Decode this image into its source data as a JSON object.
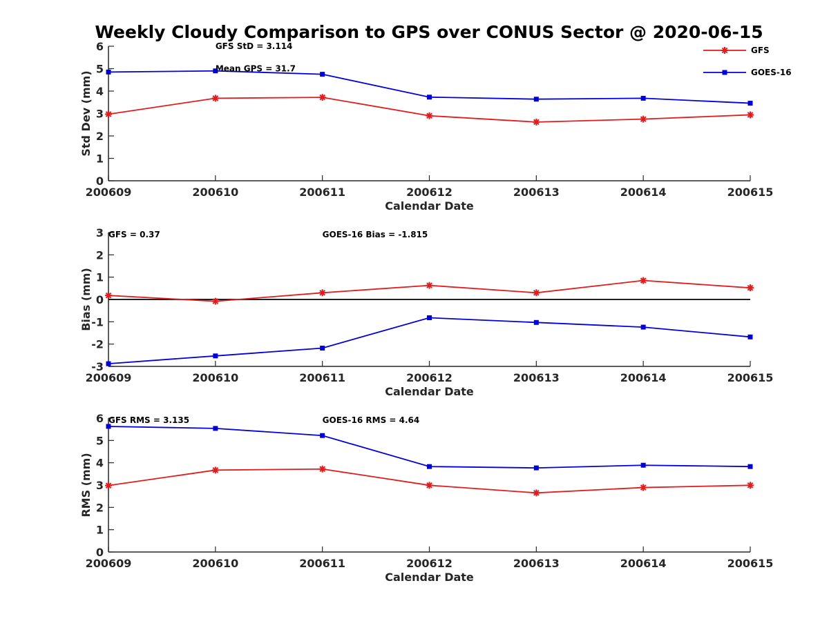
{
  "title": "Weekly Cloudy Comparison to GPS over CONUS Sector @ 2020-06-15",
  "legend": {
    "placement": "top-right",
    "entries": [
      {
        "name": "GFS",
        "color": "#e41a1c",
        "marker": "asterisk"
      },
      {
        "name": "GOES-16",
        "color": "#0000dd",
        "marker": "square"
      }
    ]
  },
  "chart_data": [
    {
      "type": "line",
      "xlabel": "Calendar Date",
      "ylabel": "Std Dev (mm)",
      "categories": [
        "200609",
        "200610",
        "200611",
        "200612",
        "200613",
        "200614",
        "200615"
      ],
      "ylim": [
        0,
        6
      ],
      "yticks": [
        "0",
        "1",
        "2",
        "3",
        "4",
        "5",
        "6"
      ],
      "series": [
        {
          "name": "GFS",
          "values": [
            2.97,
            3.68,
            3.72,
            2.9,
            2.62,
            2.75,
            2.94
          ]
        },
        {
          "name": "GOES-16",
          "values": [
            4.85,
            4.9,
            4.75,
            3.73,
            3.64,
            3.68,
            3.46
          ]
        }
      ],
      "annotations": [
        {
          "text": "GFS StD = 3.114",
          "x": "200610",
          "y": 6.0
        },
        {
          "text": "Mean GPS = 31.7",
          "x": "200610",
          "y": 5.0
        }
      ],
      "zero_line": false
    },
    {
      "type": "line",
      "xlabel": "Calendar Date",
      "ylabel": "Bias (mm)",
      "categories": [
        "200609",
        "200610",
        "200611",
        "200612",
        "200613",
        "200614",
        "200615"
      ],
      "ylim": [
        -3,
        3
      ],
      "yticks": [
        "-3",
        "-2",
        "-1",
        "0",
        "1",
        "2",
        "3"
      ],
      "series": [
        {
          "name": "GFS",
          "values": [
            0.18,
            -0.08,
            0.3,
            0.63,
            0.3,
            0.85,
            0.52
          ]
        },
        {
          "name": "GOES-16",
          "values": [
            -2.88,
            -2.53,
            -2.18,
            -0.82,
            -1.03,
            -1.24,
            -1.68
          ]
        }
      ],
      "annotations": [
        {
          "text": "GFS = 0.37",
          "x": "200609",
          "y": 2.9
        },
        {
          "text": "GOES-16 Bias  = -1.815",
          "x": "200611",
          "y": 2.9
        }
      ],
      "zero_line": true
    },
    {
      "type": "line",
      "xlabel": "Calendar Date",
      "ylabel": "RMS (mm)",
      "categories": [
        "200609",
        "200610",
        "200611",
        "200612",
        "200613",
        "200614",
        "200615"
      ],
      "ylim": [
        0,
        6
      ],
      "yticks": [
        "0",
        "1",
        "2",
        "3",
        "4",
        "5",
        "6"
      ],
      "series": [
        {
          "name": "GFS",
          "values": [
            2.98,
            3.67,
            3.72,
            2.99,
            2.65,
            2.89,
            2.99
          ]
        },
        {
          "name": "GOES-16",
          "values": [
            5.63,
            5.54,
            5.22,
            3.83,
            3.77,
            3.89,
            3.83
          ]
        }
      ],
      "annotations": [
        {
          "text": "GFS RMS = 3.135",
          "x": "200609",
          "y": 5.9
        },
        {
          "text": "GOES-16 RMS = 4.64",
          "x": "200611",
          "y": 5.9
        }
      ],
      "zero_line": false
    }
  ]
}
